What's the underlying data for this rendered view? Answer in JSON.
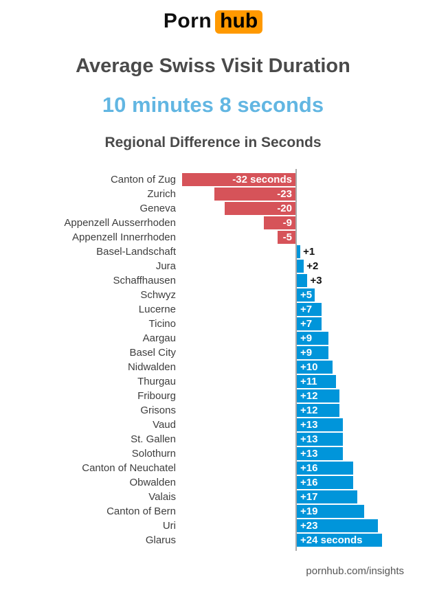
{
  "header": {
    "logo_porn": "Porn",
    "logo_hub": "hub",
    "title": "Average Swiss Visit Duration",
    "subtitle": "10 minutes 8 seconds",
    "section_title": "Regional Difference in Seconds"
  },
  "footer": {
    "site": "pornhub.com/insights"
  },
  "chart_data": {
    "type": "bar",
    "orientation": "horizontal",
    "title": "Regional Difference in Seconds",
    "unit": "seconds",
    "baseline": 0,
    "xlim": [
      -32,
      24
    ],
    "grid": false,
    "legend": false,
    "colors": {
      "negative": "#d65359",
      "positive": "#0095da",
      "value_label_inside": "#ffffff",
      "value_label_outside": "#111111"
    },
    "regions": [
      {
        "name": "Canton of Zug",
        "value": -32,
        "label": "-32 seconds"
      },
      {
        "name": "Zurich",
        "value": -23,
        "label": "-23"
      },
      {
        "name": "Geneva",
        "value": -20,
        "label": "-20"
      },
      {
        "name": "Appenzell Ausserrhoden",
        "value": -9,
        "label": "-9"
      },
      {
        "name": "Appenzell Innerrhoden",
        "value": -5,
        "label": "-5"
      },
      {
        "name": "Basel-Landschaft",
        "value": 1,
        "label": "+1"
      },
      {
        "name": "Jura",
        "value": 2,
        "label": "+2"
      },
      {
        "name": "Schaffhausen",
        "value": 3,
        "label": "+3"
      },
      {
        "name": "Schwyz",
        "value": 5,
        "label": "+5"
      },
      {
        "name": "Lucerne",
        "value": 7,
        "label": "+7"
      },
      {
        "name": "Ticino",
        "value": 7,
        "label": "+7"
      },
      {
        "name": "Aargau",
        "value": 9,
        "label": "+9"
      },
      {
        "name": "Basel City",
        "value": 9,
        "label": "+9"
      },
      {
        "name": "Nidwalden",
        "value": 10,
        "label": "+10"
      },
      {
        "name": "Thurgau",
        "value": 11,
        "label": "+11"
      },
      {
        "name": "Fribourg",
        "value": 12,
        "label": "+12"
      },
      {
        "name": "Grisons",
        "value": 12,
        "label": "+12"
      },
      {
        "name": "Vaud",
        "value": 13,
        "label": "+13"
      },
      {
        "name": "St. Gallen",
        "value": 13,
        "label": "+13"
      },
      {
        "name": "Solothurn",
        "value": 13,
        "label": "+13"
      },
      {
        "name": "Canton of Neuchatel",
        "value": 16,
        "label": "+16"
      },
      {
        "name": "Obwalden",
        "value": 16,
        "label": "+16"
      },
      {
        "name": "Valais",
        "value": 17,
        "label": "+17"
      },
      {
        "name": "Canton of Bern",
        "value": 19,
        "label": "+19"
      },
      {
        "name": "Uri",
        "value": 23,
        "label": "+23"
      },
      {
        "name": "Glarus",
        "value": 24,
        "label": "+24 seconds"
      }
    ]
  }
}
